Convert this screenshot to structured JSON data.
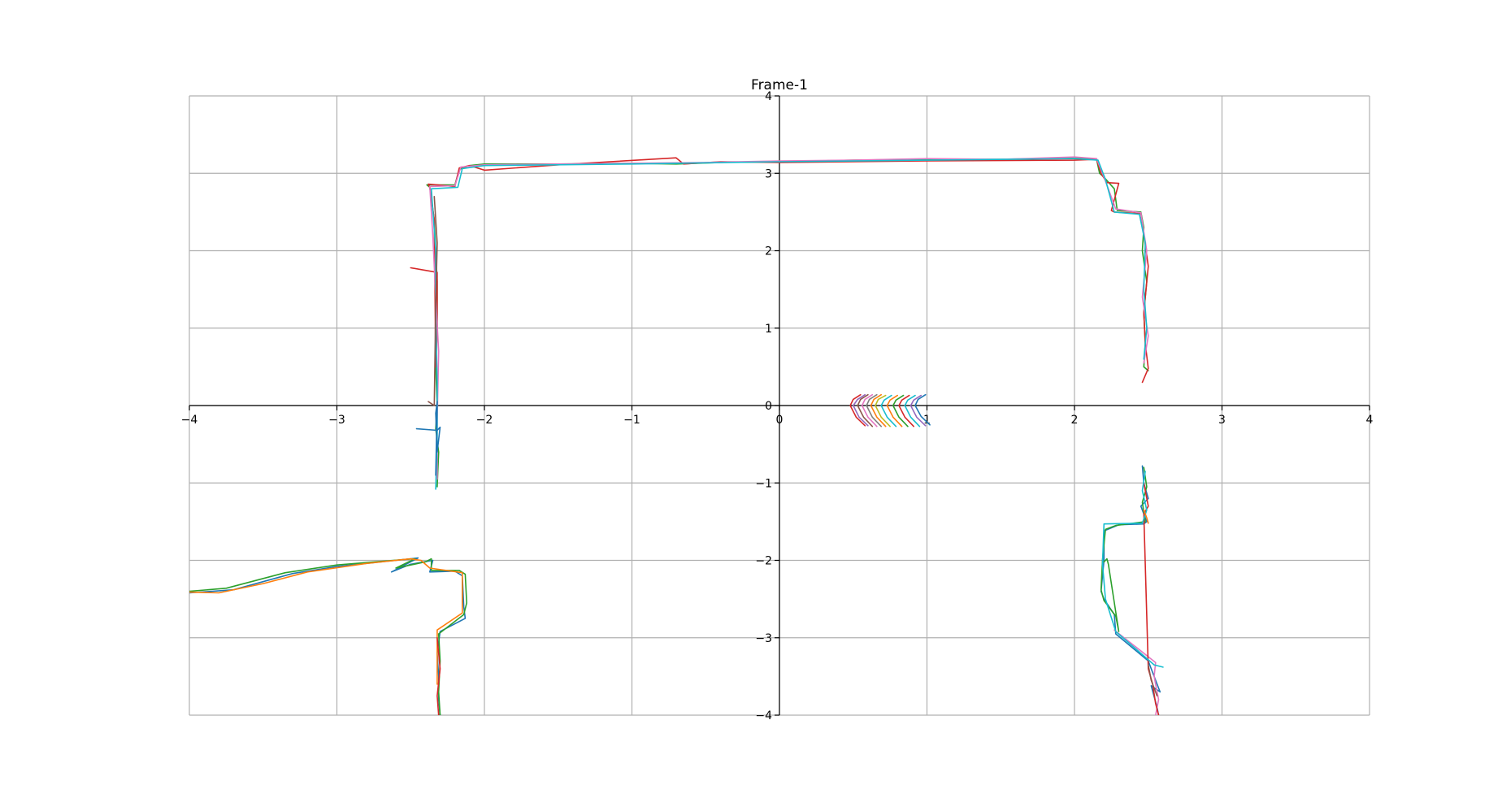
{
  "chart_data": {
    "type": "line",
    "title": "Frame-1",
    "xlabel": "",
    "ylabel": "",
    "xlim": [
      -4,
      4
    ],
    "ylim": [
      -4,
      4
    ],
    "xticks": [
      -4,
      -3,
      -2,
      -1,
      0,
      1,
      2,
      3,
      4
    ],
    "yticks": [
      -4,
      -3,
      -2,
      -1,
      0,
      1,
      2,
      3,
      4
    ],
    "xtick_labels": [
      "−4",
      "−3",
      "−2",
      "−1",
      "0",
      "1",
      "2",
      "3",
      "4"
    ],
    "ytick_labels": [
      "−4",
      "−3",
      "−2",
      "−1",
      "0",
      "1",
      "2",
      "3",
      "4"
    ],
    "grid": true,
    "spines": "centered at origin",
    "palette": [
      "#1f77b4",
      "#ff7f0e",
      "#2ca02c",
      "#d62728",
      "#9467bd",
      "#8c564b",
      "#e377c2",
      "#7f7f7f",
      "#bcbd22",
      "#17becf"
    ],
    "series": [
      {
        "color": "#2ca02c",
        "x": [
          -2.32,
          -2.31,
          -2.33,
          -2.32,
          -2.33,
          -2.32,
          -2.32,
          -2.33,
          -2.34,
          -2.37,
          -2.39,
          -2.2,
          -2.17,
          -2.1,
          -2.0,
          -1.5,
          -1.0,
          -0.7,
          -0.4,
          0.0,
          0.5,
          1.0,
          1.5,
          2.0,
          2.15,
          2.17,
          2.2,
          2.27,
          2.29,
          2.45,
          2.47,
          2.46,
          2.49,
          2.47,
          2.48,
          2.47,
          2.5
        ],
        "y": [
          -1.05,
          -0.6,
          -0.3,
          0.0,
          0.5,
          1.0,
          1.6,
          2.0,
          2.4,
          2.82,
          2.85,
          2.85,
          3.05,
          3.1,
          3.12,
          3.12,
          3.13,
          3.12,
          3.14,
          3.15,
          3.17,
          3.18,
          3.18,
          3.2,
          3.18,
          3.0,
          2.95,
          2.8,
          2.52,
          2.5,
          2.3,
          2.0,
          1.6,
          1.2,
          0.8,
          0.5,
          0.45
        ]
      },
      {
        "color": "#d62728",
        "x": [
          -2.5,
          -2.32,
          -2.32,
          -2.33,
          -2.34,
          -2.37,
          -2.38,
          -2.2,
          -2.17,
          -2.1,
          -2.0,
          -1.5,
          -0.7,
          -0.65,
          -0.4,
          0.0,
          1.0,
          2.0,
          2.15,
          2.18,
          2.22,
          2.3,
          2.25,
          2.27,
          2.45,
          2.5,
          2.47,
          2.48,
          2.5,
          2.46
        ],
        "y": [
          1.78,
          1.72,
          1.0,
          0.5,
          2.4,
          2.82,
          2.86,
          2.83,
          3.07,
          3.1,
          3.04,
          3.11,
          3.2,
          3.12,
          3.15,
          3.14,
          3.16,
          3.17,
          3.18,
          3.0,
          2.88,
          2.87,
          2.52,
          2.5,
          2.48,
          1.8,
          1.2,
          0.8,
          0.48,
          0.3
        ]
      },
      {
        "color": "#e377c2",
        "x": [
          -2.32,
          -2.32,
          -2.31,
          -2.33,
          -2.35,
          -2.37,
          -2.2,
          -2.16,
          -2.0,
          -1.5,
          -1.0,
          -0.5,
          0.0,
          0.5,
          1.0,
          1.5,
          2.0,
          2.15,
          2.2,
          2.28,
          2.45,
          2.49,
          2.46,
          2.5,
          2.47
        ],
        "y": [
          -0.95,
          -0.2,
          0.7,
          1.4,
          2.2,
          2.83,
          2.84,
          3.08,
          3.11,
          3.12,
          3.13,
          3.14,
          3.16,
          3.17,
          3.19,
          3.18,
          3.21,
          3.19,
          2.95,
          2.54,
          2.49,
          2.0,
          1.4,
          0.9,
          0.55
        ]
      },
      {
        "color": "#17becf",
        "x": [
          -2.33,
          -2.32,
          -2.32,
          -2.33,
          -2.33,
          -2.36,
          -2.18,
          -2.15,
          -2.0,
          -1.0,
          0.0,
          1.0,
          2.0,
          2.16,
          2.21,
          2.27,
          2.44,
          2.48,
          2.47,
          2.49,
          2.47
        ],
        "y": [
          -1.08,
          -0.4,
          0.3,
          1.1,
          2.0,
          2.8,
          2.82,
          3.06,
          3.1,
          3.12,
          3.15,
          3.17,
          3.19,
          3.17,
          2.92,
          2.5,
          2.47,
          2.1,
          1.5,
          1.0,
          0.6
        ]
      },
      {
        "color": "#1f77b4",
        "x": [
          -2.46,
          -2.32,
          -2.3,
          -2.32,
          -2.33,
          -2.32,
          -2.33
        ],
        "y": [
          -0.3,
          -0.32,
          -0.28,
          -0.6,
          -0.1,
          0.05,
          -0.9
        ]
      },
      {
        "color": "#8c564b",
        "x": [
          -2.38,
          -2.34,
          -2.33,
          -2.32,
          -2.34
        ],
        "y": [
          0.05,
          0.0,
          1.3,
          2.1,
          2.7
        ]
      },
      {
        "color": "#1f77b4",
        "x": [
          -4.0,
          -3.7,
          -3.3,
          -3.0,
          -2.6,
          -2.45,
          -2.63,
          -2.5,
          -2.35,
          -2.37,
          -2.2,
          -2.15,
          -2.14,
          -2.13,
          -2.3,
          -2.32,
          -2.31,
          -2.31,
          -2.3
        ],
        "y": [
          -2.42,
          -2.38,
          -2.17,
          -2.08,
          -2.0,
          -1.97,
          -2.15,
          -2.05,
          -2.0,
          -2.15,
          -2.14,
          -2.2,
          -2.6,
          -2.75,
          -2.92,
          -3.2,
          -3.5,
          -3.8,
          -4.0
        ]
      },
      {
        "color": "#2ca02c",
        "x": [
          -4.0,
          -3.75,
          -3.35,
          -3.0,
          -2.55,
          -2.47,
          -2.6,
          -2.4,
          -2.36,
          -2.36,
          -2.17,
          -2.13,
          -2.12,
          -2.14,
          -2.31,
          -2.3,
          -2.31,
          -2.3
        ],
        "y": [
          -2.4,
          -2.36,
          -2.16,
          -2.06,
          -1.99,
          -1.98,
          -2.1,
          -2.02,
          -1.98,
          -2.13,
          -2.13,
          -2.18,
          -2.55,
          -2.7,
          -2.95,
          -3.3,
          -3.7,
          -4.0
        ]
      },
      {
        "color": "#ff7f0e",
        "x": [
          -4.0,
          -3.8,
          -3.5,
          -3.2,
          -2.8,
          -2.5,
          -2.43,
          -2.37,
          -2.15,
          -2.15,
          -2.32,
          -2.32
        ],
        "y": [
          -2.41,
          -2.42,
          -2.3,
          -2.15,
          -2.04,
          -1.98,
          -2.0,
          -2.1,
          -2.16,
          -2.68,
          -2.9,
          -3.6
        ]
      },
      {
        "color": "#d62728",
        "x": [
          -2.32,
          -2.3,
          -2.32,
          -2.31
        ],
        "y": [
          -3.0,
          -3.4,
          -3.75,
          -4.0
        ]
      },
      {
        "color": "#1f77b4",
        "x": [
          2.46,
          2.47,
          2.5,
          2.45,
          2.49,
          2.47,
          2.3,
          2.2,
          2.2,
          2.18,
          2.2,
          2.27,
          2.28,
          2.5,
          2.52,
          2.58,
          2.52,
          2.56,
          2.57
        ],
        "y": [
          -0.78,
          -1.0,
          -1.2,
          -1.3,
          -1.5,
          -1.53,
          -1.54,
          -1.62,
          -2.0,
          -2.4,
          -2.5,
          -2.7,
          -2.95,
          -3.3,
          -3.4,
          -3.7,
          -3.62,
          -3.9,
          -4.0
        ]
      },
      {
        "color": "#2ca02c",
        "x": [
          2.47,
          2.49,
          2.46,
          2.48,
          2.28,
          2.21,
          2.19,
          2.18,
          2.2,
          2.28,
          2.3,
          2.23,
          2.22,
          2.2
        ],
        "y": [
          -0.8,
          -1.05,
          -1.25,
          -1.5,
          -1.55,
          -1.6,
          -1.99,
          -2.38,
          -2.52,
          -2.72,
          -2.92,
          -2.05,
          -1.98,
          -2.02
        ]
      },
      {
        "color": "#e377c2",
        "x": [
          2.27,
          2.55,
          2.54,
          2.57,
          2.55
        ],
        "y": [
          -2.9,
          -3.32,
          -3.5,
          -3.8,
          -4.0
        ]
      },
      {
        "color": "#d62728",
        "x": [
          2.47,
          2.5,
          2.47,
          2.5,
          2.53,
          2.55,
          2.57
        ],
        "y": [
          -1.0,
          -1.3,
          -1.4,
          -3.4,
          -3.6,
          -3.85,
          -4.0
        ]
      },
      {
        "color": "#17becf",
        "x": [
          2.48,
          2.46,
          2.49,
          2.46,
          2.2,
          2.19,
          2.21,
          2.28,
          2.54,
          2.6
        ],
        "y": [
          -0.85,
          -1.1,
          -1.35,
          -1.52,
          -1.53,
          -2.05,
          -2.5,
          -2.92,
          -3.35,
          -3.38
        ]
      },
      {
        "color": "#ff7f0e",
        "x": [
          2.47,
          2.49,
          2.5
        ],
        "y": [
          -1.35,
          -1.45,
          -1.52
        ]
      },
      {
        "color": "#8c564b",
        "x": [
          2.5,
          2.52,
          2.56
        ],
        "y": [
          -3.35,
          -3.55,
          -3.75
        ]
      },
      {
        "color": "#d62728",
        "x": [
          0.55,
          0.5,
          0.48,
          0.52,
          0.58
        ],
        "y": [
          0.14,
          0.08,
          0.0,
          -0.15,
          -0.26
        ]
      },
      {
        "color": "#9467bd",
        "x": [
          0.58,
          0.53,
          0.5,
          0.54,
          0.6
        ],
        "y": [
          0.14,
          0.08,
          0.0,
          -0.15,
          -0.26
        ]
      },
      {
        "color": "#8c564b",
        "x": [
          0.6,
          0.55,
          0.53,
          0.57,
          0.63
        ],
        "y": [
          0.14,
          0.08,
          0.0,
          -0.15,
          -0.27
        ]
      },
      {
        "color": "#e377c2",
        "x": [
          0.63,
          0.58,
          0.56,
          0.6,
          0.66
        ],
        "y": [
          0.14,
          0.08,
          0.0,
          -0.15,
          -0.27
        ]
      },
      {
        "color": "#7f7f7f",
        "x": [
          0.66,
          0.61,
          0.59,
          0.63,
          0.69
        ],
        "y": [
          0.14,
          0.08,
          0.0,
          -0.15,
          -0.27
        ]
      },
      {
        "color": "#ff7f0e",
        "x": [
          0.69,
          0.64,
          0.62,
          0.66,
          0.72
        ],
        "y": [
          0.14,
          0.08,
          0.0,
          -0.15,
          -0.27
        ]
      },
      {
        "color": "#bcbd22",
        "x": [
          0.72,
          0.67,
          0.65,
          0.69,
          0.75
        ],
        "y": [
          0.13,
          0.08,
          0.0,
          -0.15,
          -0.27
        ]
      },
      {
        "color": "#17becf",
        "x": [
          0.76,
          0.71,
          0.69,
          0.73,
          0.79
        ],
        "y": [
          0.13,
          0.07,
          0.0,
          -0.15,
          -0.27
        ]
      },
      {
        "color": "#ff7f0e",
        "x": [
          0.8,
          0.75,
          0.73,
          0.77,
          0.83
        ],
        "y": [
          0.13,
          0.07,
          0.0,
          -0.15,
          -0.27
        ]
      },
      {
        "color": "#2ca02c",
        "x": [
          0.84,
          0.79,
          0.77,
          0.81,
          0.87
        ],
        "y": [
          0.13,
          0.07,
          0.0,
          -0.15,
          -0.27
        ]
      },
      {
        "color": "#d62728",
        "x": [
          0.88,
          0.83,
          0.81,
          0.85,
          0.91
        ],
        "y": [
          0.13,
          0.07,
          0.0,
          -0.15,
          -0.27
        ]
      },
      {
        "color": "#17becf",
        "x": [
          0.92,
          0.87,
          0.85,
          0.89,
          0.95
        ],
        "y": [
          0.13,
          0.07,
          0.0,
          -0.15,
          -0.27
        ]
      },
      {
        "color": "#9467bd",
        "x": [
          0.96,
          0.91,
          0.89,
          0.93,
          0.99
        ],
        "y": [
          0.13,
          0.07,
          0.0,
          -0.15,
          -0.26
        ]
      },
      {
        "color": "#1f77b4",
        "x": [
          0.99,
          0.94,
          0.92,
          0.96,
          1.02
        ],
        "y": [
          0.14,
          0.08,
          0.0,
          -0.14,
          -0.25
        ]
      }
    ]
  }
}
